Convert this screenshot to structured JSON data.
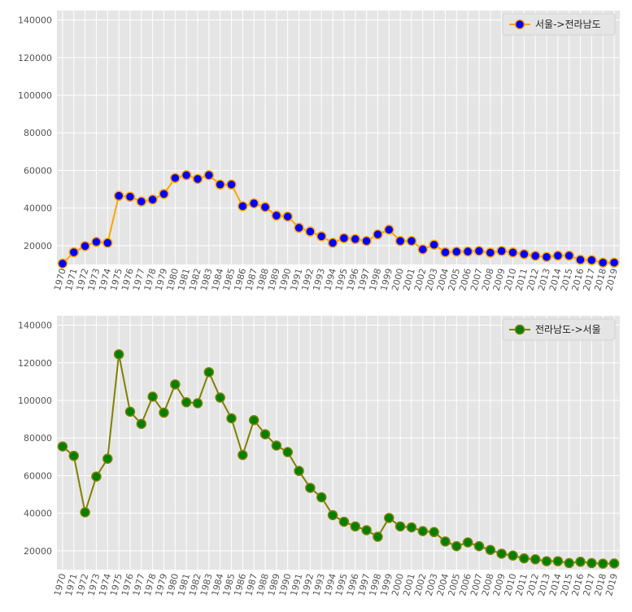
{
  "chart_data": [
    {
      "type": "line",
      "x": [
        "1970",
        "1971",
        "1972",
        "1973",
        "1974",
        "1975",
        "1976",
        "1977",
        "1978",
        "1979",
        "1980",
        "1981",
        "1982",
        "1983",
        "1984",
        "1985",
        "1986",
        "1987",
        "1988",
        "1989",
        "1990",
        "1991",
        "1992",
        "1993",
        "1994",
        "1995",
        "1996",
        "1997",
        "1998",
        "1999",
        "2000",
        "2001",
        "2002",
        "2003",
        "2004",
        "2005",
        "2006",
        "2007",
        "2008",
        "2009",
        "2010",
        "2011",
        "2012",
        "2013",
        "2014",
        "2015",
        "2016",
        "2017",
        "2018",
        "2019"
      ],
      "series": [
        {
          "name": "서울->전라남도",
          "values": [
            10500,
            16500,
            19800,
            22000,
            21500,
            46500,
            46000,
            43500,
            44500,
            47500,
            56000,
            57500,
            55500,
            57500,
            52500,
            52500,
            41000,
            42500,
            40500,
            36000,
            35500,
            29500,
            27500,
            25000,
            21500,
            24000,
            23500,
            22500,
            26000,
            28500,
            22500,
            22500,
            18000,
            20500,
            16500,
            16800,
            16900,
            17200,
            16300,
            17200,
            16400,
            15500,
            14600,
            14000,
            14700,
            14700,
            12500,
            12300,
            11000,
            11000
          ],
          "line_color": "#ffa500",
          "marker_color": "#0000ff"
        }
      ],
      "ylim": [
        10000,
        145000
      ],
      "yticks": [
        20000,
        40000,
        60000,
        80000,
        100000,
        120000,
        140000
      ],
      "legend": "top-right",
      "grid": true,
      "title": "",
      "xlabel": "",
      "ylabel": ""
    },
    {
      "type": "line",
      "x": [
        "1970",
        "1971",
        "1972",
        "1973",
        "1974",
        "1975",
        "1976",
        "1977",
        "1978",
        "1979",
        "1980",
        "1981",
        "1982",
        "1983",
        "1984",
        "1985",
        "1986",
        "1987",
        "1988",
        "1989",
        "1990",
        "1991",
        "1992",
        "1993",
        "1994",
        "1995",
        "1996",
        "1997",
        "1998",
        "1999",
        "2000",
        "2001",
        "2002",
        "2003",
        "2004",
        "2005",
        "2006",
        "2007",
        "2008",
        "2009",
        "2010",
        "2011",
        "2012",
        "2013",
        "2014",
        "2015",
        "2016",
        "2017",
        "2018",
        "2019"
      ],
      "series": [
        {
          "name": "전라남도->서울",
          "values": [
            75500,
            70500,
            40500,
            59500,
            69000,
            124500,
            94000,
            87500,
            102000,
            93500,
            108500,
            99000,
            98500,
            115000,
            101500,
            90500,
            71000,
            89500,
            82000,
            76000,
            72500,
            62500,
            53500,
            48500,
            39000,
            35500,
            33000,
            31000,
            27500,
            37500,
            33000,
            32500,
            30500,
            30000,
            25000,
            22500,
            24500,
            22500,
            20500,
            18500,
            17500,
            16000,
            15500,
            14500,
            14500,
            13500,
            14200,
            13500,
            13200,
            13300
          ],
          "line_color": "#808000",
          "marker_color": "#008000"
        }
      ],
      "ylim": [
        10000,
        145000
      ],
      "yticks": [
        20000,
        40000,
        60000,
        80000,
        100000,
        120000,
        140000
      ],
      "legend": "top-right",
      "grid": true,
      "title": "",
      "xlabel": "",
      "ylabel": ""
    }
  ]
}
